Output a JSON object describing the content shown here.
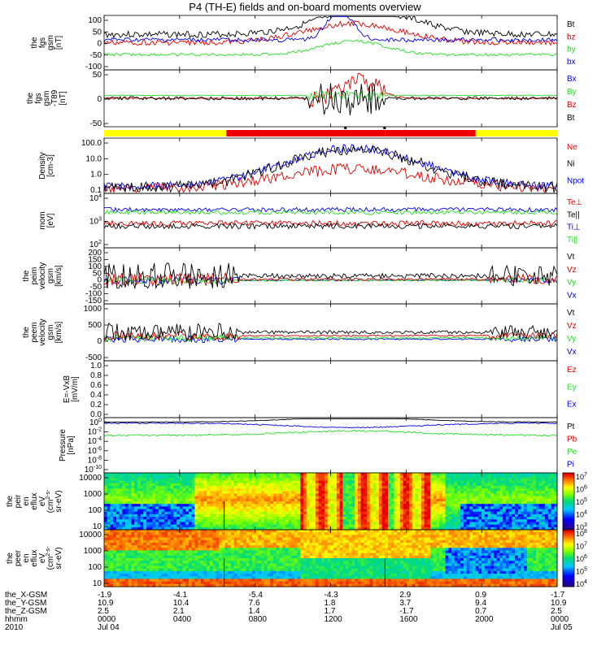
{
  "title": "P4 (TH-E) fields and on-board moments overview",
  "colors": {
    "black": "#000000",
    "red": "#e00000",
    "green": "#22dd22",
    "blue": "#0000ee",
    "bar_yellow": "#ffff00",
    "bar_red": "#ee0000"
  },
  "chart_data": [
    {
      "type": "line",
      "ylabel": [
        "the",
        "fgs",
        "gsm",
        "[nT]"
      ],
      "yticks": [
        "100",
        "50",
        "0",
        "-50",
        "-100"
      ],
      "ylim": [
        -100,
        100
      ],
      "legend": [
        "Bt",
        "bz",
        "by",
        "bx"
      ],
      "x": [
        "0000",
        "0400",
        "0800",
        "1200",
        "1600",
        "2000",
        "0000"
      ],
      "series": [
        {
          "name": "Bt",
          "values": [
            40,
            40,
            55,
            70,
            100,
            85,
            30
          ]
        },
        {
          "name": "bz",
          "values": [
            30,
            30,
            40,
            60,
            20,
            60,
            20
          ]
        },
        {
          "name": "by",
          "values": [
            -20,
            -20,
            -15,
            -10,
            0,
            -10,
            -5
          ]
        },
        {
          "name": "bx",
          "values": [
            10,
            5,
            10,
            30,
            -20,
            40,
            10
          ]
        }
      ]
    },
    {
      "type": "line",
      "ylabel": [
        "the",
        "fgs",
        "gsm",
        "-T89",
        "[nT]"
      ],
      "yticks": [
        "50",
        "0",
        "-50"
      ],
      "ylim": [
        -60,
        60
      ],
      "legend": [
        "Bx",
        "By",
        "Bz",
        "Bt"
      ]
    },
    {
      "type": "area",
      "segments": [
        {
          "from": "0000",
          "to": "0600",
          "color": "yellow"
        },
        {
          "from": "0600",
          "to": "1500",
          "color": "red"
        },
        {
          "from": "1500",
          "to": "2000",
          "color": "red"
        },
        {
          "from": "2000",
          "to": "0000",
          "color": "yellow"
        }
      ]
    },
    {
      "type": "line",
      "ylabel": [
        "Density",
        "[cm-3]"
      ],
      "yticks": [
        "100.0",
        "10.0",
        "1.0",
        "0.1"
      ],
      "log": true,
      "legend": [
        "Ne",
        "Ni",
        "Npot"
      ]
    },
    {
      "type": "line",
      "ylabel": [
        "mom",
        "[eV]"
      ],
      "yticks": [
        "10^4",
        "10^3",
        "10^2"
      ],
      "log": true,
      "legend": [
        "Te⊥",
        "Te||",
        "Ti⊥",
        "Ti||"
      ]
    },
    {
      "type": "line",
      "ylabel": [
        "the",
        "peim",
        "velocity",
        "gsm",
        "[km/s]"
      ],
      "yticks": [
        "200",
        "150",
        "100",
        "50",
        "0",
        "-50",
        "-100",
        "-150"
      ],
      "ylim": [
        -150,
        200
      ],
      "legend": [
        "Vt",
        "Vz",
        "Vy",
        "Vx"
      ]
    },
    {
      "type": "line",
      "ylabel": [
        "the",
        "peem",
        "velocity",
        "gsm",
        "[km/s]"
      ],
      "yticks": [
        "1000",
        "500",
        "0",
        "-500"
      ],
      "ylim": [
        -500,
        1000
      ],
      "legend": [
        "Vt",
        "Vz",
        "Vy",
        "Vx"
      ]
    },
    {
      "type": "line",
      "ylabel": [
        "E=-VxB",
        "[mV/m]"
      ],
      "yticks": [
        "1.0",
        "0.8",
        "0.6",
        "0.4",
        "0.2",
        "0.0"
      ],
      "ylim": [
        0,
        1
      ],
      "legend": [
        "Ez",
        "Ey",
        "Ex"
      ]
    },
    {
      "type": "line",
      "ylabel": [
        "Pressure",
        "[nPa]"
      ],
      "yticks": [
        "10^0",
        "10^-2",
        "10^-4",
        "10^-6",
        "10^-8",
        "10^-10"
      ],
      "log": true,
      "legend": [
        "Pt",
        "Pb",
        "Pe",
        "Pi"
      ]
    },
    {
      "type": "heatmap",
      "ylabel": [
        "the",
        "peir",
        "en",
        "eflux",
        "eV",
        "(cm^2-s-",
        "sr-eV)"
      ],
      "yticks": [
        "10000",
        "1000",
        "100",
        "10"
      ],
      "colorbar_ticks": [
        "10^7",
        "10^6",
        "10^5",
        "10^4",
        "10^3"
      ]
    },
    {
      "type": "heatmap",
      "ylabel": [
        "the",
        "peer",
        "en",
        "eflux",
        "eV",
        "(cm^2-s-",
        "sr-eV)"
      ],
      "yticks": [
        "10000",
        "1000",
        "100",
        "10"
      ],
      "colorbar_ticks": [
        "10^8",
        "10^7",
        "10^6",
        "10^5",
        "10^4"
      ]
    }
  ],
  "xaxis": {
    "row_labels": [
      "the_X-GSM",
      "the_Y-GSM",
      "the_Z-GSM",
      "hhmm",
      "2010"
    ],
    "columns": [
      [
        "-1.9",
        "10.9",
        "2.5",
        "0000",
        "Jul 04"
      ],
      [
        "-4.1",
        "10.4",
        "2.1",
        "0400",
        ""
      ],
      [
        "-5.4",
        "7.6",
        "1.4",
        "0800",
        ""
      ],
      [
        "-4.3",
        "1.8",
        "1.7",
        "1200",
        ""
      ],
      [
        "2.9",
        "3.7",
        "-1.7",
        "1600",
        ""
      ],
      [
        "0.9",
        "9.4",
        "0.7",
        "2000",
        ""
      ],
      [
        "-1.7",
        "10.9",
        "2.5",
        "0000",
        "Jul 05"
      ]
    ]
  }
}
